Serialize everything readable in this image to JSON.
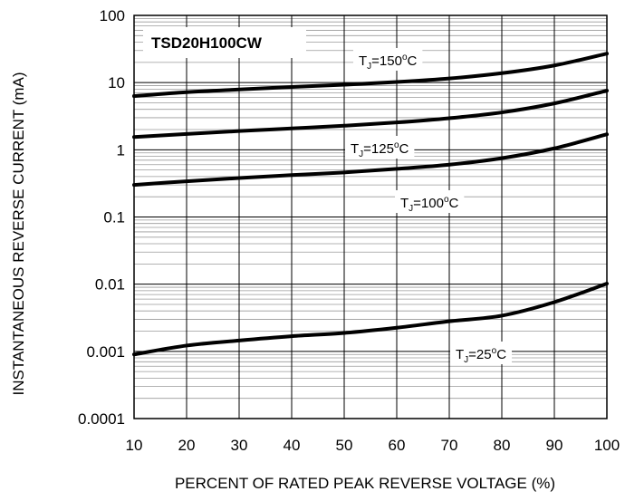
{
  "chart_data": {
    "type": "line",
    "title": "TSD20H100CW",
    "xlabel": "PERCENT OF RATED PEAK REVERSE VOLTAGE (%)",
    "ylabel": "INSTANTANEOUS REVERSE CURRENT (mA)",
    "xlim": [
      10,
      100
    ],
    "ylim": [
      0.0001,
      100
    ],
    "yscale": "log",
    "grid": true,
    "x_ticks": [
      "10",
      "20",
      "30",
      "40",
      "50",
      "60",
      "70",
      "80",
      "90",
      "100"
    ],
    "y_ticks": [
      "100",
      "10",
      "1",
      "0.1",
      "0.01",
      "0.001",
      "0.0001"
    ],
    "x": [
      10,
      20,
      30,
      40,
      50,
      60,
      70,
      80,
      90,
      100
    ],
    "series": [
      {
        "name": "TJ=150°C",
        "values": [
          6.3,
          7.2,
          7.9,
          8.6,
          9.3,
          10.2,
          11.5,
          13.8,
          18.0,
          27.0
        ]
      },
      {
        "name": "TJ=125°C",
        "values": [
          1.55,
          1.72,
          1.9,
          2.08,
          2.28,
          2.55,
          2.95,
          3.6,
          4.9,
          7.6
        ]
      },
      {
        "name": "TJ=100°C",
        "values": [
          0.3,
          0.34,
          0.38,
          0.42,
          0.46,
          0.52,
          0.6,
          0.75,
          1.05,
          1.7
        ]
      },
      {
        "name": "TJ=25°C",
        "values": [
          0.0009,
          0.00122,
          0.00145,
          0.00168,
          0.00188,
          0.00225,
          0.0028,
          0.0034,
          0.0054,
          0.0102
        ]
      }
    ],
    "annotations": [
      {
        "prefix": "T",
        "sub": "J",
        "suffix": "=150",
        "sup": "o",
        "unit": "C",
        "series": "TJ=150°C"
      },
      {
        "prefix": "T",
        "sub": "J",
        "suffix": "=125",
        "sup": "o",
        "unit": "C",
        "series": "TJ=125°C"
      },
      {
        "prefix": "T",
        "sub": "J",
        "suffix": "=100",
        "sup": "o",
        "unit": "C",
        "series": "TJ=100°C"
      },
      {
        "prefix": "T",
        "sub": "J",
        "suffix": "=25",
        "sup": "o",
        "unit": "C",
        "series": "TJ=25°C"
      }
    ],
    "colors": {
      "line": "#000000",
      "grid_major": "#000000",
      "grid_minor": "#9a9a9a"
    }
  }
}
